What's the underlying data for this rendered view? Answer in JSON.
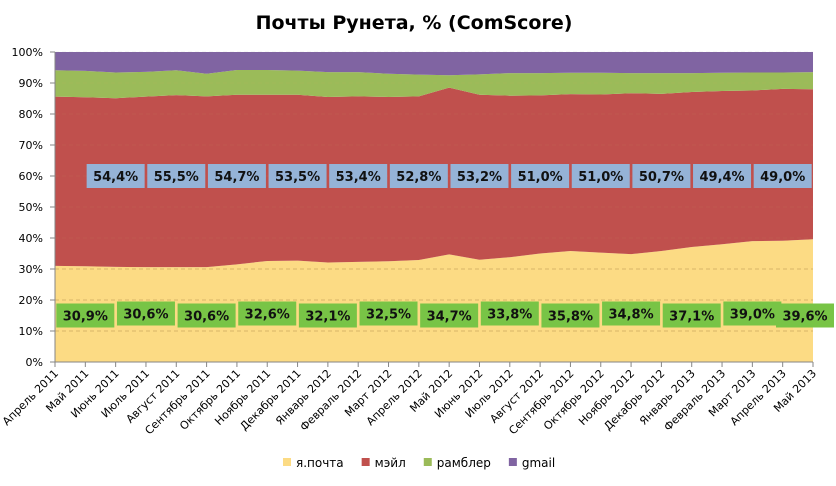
{
  "chart_data": {
    "type": "area",
    "stacked": "percent",
    "title": "Почты Рунета, % (ComScore)",
    "xlabel": "",
    "ylabel": "",
    "ylim": [
      0,
      100
    ],
    "yticks": [
      "0%",
      "10%",
      "20%",
      "30%",
      "40%",
      "50%",
      "60%",
      "70%",
      "80%",
      "90%",
      "100%"
    ],
    "grid": "dashed horizontal",
    "legend": "bottom",
    "categories": [
      "Апрель 2011",
      "Май 2011",
      "Июнь 2011",
      "Июль 2011",
      "Август 2011",
      "Сентябрь 2011",
      "Октябрь 2011",
      "Ноябрь 2011",
      "Декабрь 2011",
      "Январь 2012",
      "Февраль 2012",
      "Март 2012",
      "Апрель 2012",
      "Май 2012",
      "Июнь 2012",
      "Июль 2012",
      "Август 2012",
      "Сентябрь 2012",
      "Октябрь 2012",
      "Ноябрь 2012",
      "Декабрь 2012",
      "Январь 2013",
      "Февраль 2013",
      "Март 2013",
      "Апрель 2013",
      "Май 2013"
    ],
    "series": [
      {
        "name": "я.почта",
        "color": "#FCDB84",
        "label_color": "#78C446",
        "values": [
          31.0,
          30.9,
          30.7,
          30.6,
          30.6,
          30.6,
          31.5,
          32.6,
          32.7,
          32.1,
          32.3,
          32.5,
          32.9,
          34.7,
          33.0,
          33.8,
          35.0,
          35.8,
          35.3,
          34.8,
          35.8,
          37.1,
          38.0,
          39.0,
          39.1,
          39.6
        ],
        "labels": [
          {
            "i": 1,
            "text": "30,9%"
          },
          {
            "i": 3,
            "text": "30,6%"
          },
          {
            "i": 5,
            "text": "30,6%"
          },
          {
            "i": 7,
            "text": "32,6%"
          },
          {
            "i": 9,
            "text": "32,1%"
          },
          {
            "i": 11,
            "text": "32,5%"
          },
          {
            "i": 13,
            "text": "34,7%"
          },
          {
            "i": 15,
            "text": "33,8%"
          },
          {
            "i": 17,
            "text": "35,8%"
          },
          {
            "i": 19,
            "text": "34,8%"
          },
          {
            "i": 21,
            "text": "37,1%"
          },
          {
            "i": 23,
            "text": "39,0%"
          },
          {
            "i": 25,
            "text": "39,6%"
          }
        ]
      },
      {
        "name": "мэйл",
        "color": "#C0504D",
        "label_color": "#95B3D7",
        "values": [
          54.6,
          54.5,
          54.4,
          55.0,
          55.5,
          55.1,
          54.7,
          53.6,
          53.5,
          53.4,
          53.4,
          53.0,
          52.8,
          53.8,
          53.2,
          52.1,
          51.0,
          50.6,
          51.0,
          51.9,
          50.7,
          50.0,
          49.4,
          48.6,
          49.0,
          48.4
        ],
        "labels": [
          {
            "i": 2,
            "text": "54,4%"
          },
          {
            "i": 4,
            "text": "55,5%"
          },
          {
            "i": 6,
            "text": "54,7%"
          },
          {
            "i": 8,
            "text": "53,5%"
          },
          {
            "i": 10,
            "text": "53,4%"
          },
          {
            "i": 12,
            "text": "52,8%"
          },
          {
            "i": 14,
            "text": "53,2%"
          },
          {
            "i": 16,
            "text": "51,0%"
          },
          {
            "i": 18,
            "text": "51,0%"
          },
          {
            "i": 20,
            "text": "50,7%"
          },
          {
            "i": 22,
            "text": "49,4%"
          },
          {
            "i": 24,
            "text": "49,0%"
          }
        ]
      },
      {
        "name": "рамблер",
        "color": "#9BBB59",
        "values": [
          8.5,
          8.5,
          8.3,
          8.0,
          8.0,
          7.3,
          8.0,
          8.0,
          7.8,
          8.0,
          7.8,
          7.5,
          7.0,
          4.0,
          6.6,
          7.3,
          7.2,
          6.9,
          7.0,
          6.5,
          6.7,
          6.1,
          5.9,
          5.8,
          5.3,
          5.5
        ]
      },
      {
        "name": "gmail",
        "color": "#8064A2",
        "values": [
          5.9,
          6.1,
          6.6,
          6.4,
          5.9,
          7.0,
          5.8,
          5.8,
          6.0,
          6.5,
          6.5,
          7.0,
          7.3,
          7.5,
          7.2,
          6.8,
          6.8,
          6.7,
          6.7,
          6.8,
          6.8,
          6.8,
          6.7,
          6.6,
          6.6,
          6.5
        ]
      }
    ]
  }
}
